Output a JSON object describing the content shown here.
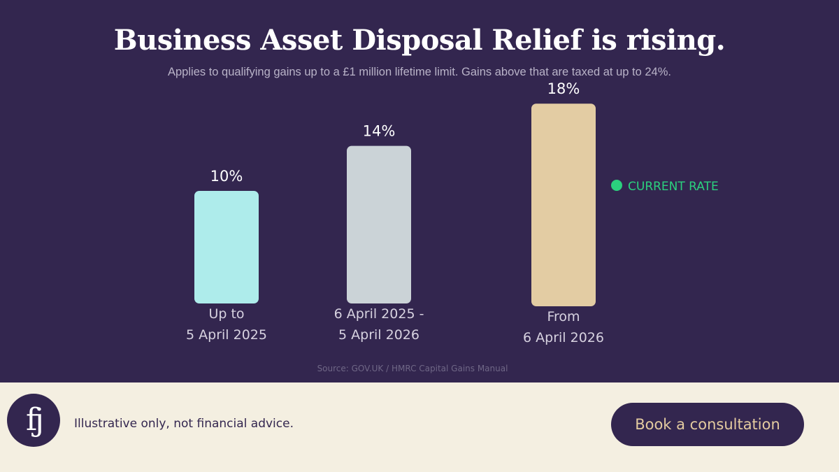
{
  "header": {
    "title": "Business Asset Disposal Relief is rising.",
    "subtitle": "Applies to qualifying gains up to a £1 million lifetime limit. Gains above that are taxed at up to 24%."
  },
  "chart_data": {
    "type": "bar",
    "categories": [
      [
        "Up to",
        "5 April 2025"
      ],
      [
        "6 April 2025 -",
        "5 April 2026"
      ],
      [
        "From",
        "6 April 2026"
      ]
    ],
    "values": [
      10,
      14,
      18
    ],
    "data_labels": [
      "10%",
      "14%",
      "18%"
    ],
    "colors": [
      "#aeeceb",
      "#cbd3d7",
      "#e3cca3"
    ],
    "annotation": {
      "text": "CURRENT RATE",
      "color": "#2bd17e",
      "category_index": 2
    },
    "ylim": [
      0,
      18
    ],
    "grid": false,
    "legend": "none"
  },
  "source": "Source: GOV.UK / HMRC Capital Gains Manual",
  "footer": {
    "logo_text": "fj",
    "disclaimer": "Illustrative only, not financial advice.",
    "cta_label": "Book a consultation"
  },
  "colors": {
    "background": "#33264f",
    "footer_background": "#f4efe1",
    "cta_text": "#e4cba0"
  }
}
